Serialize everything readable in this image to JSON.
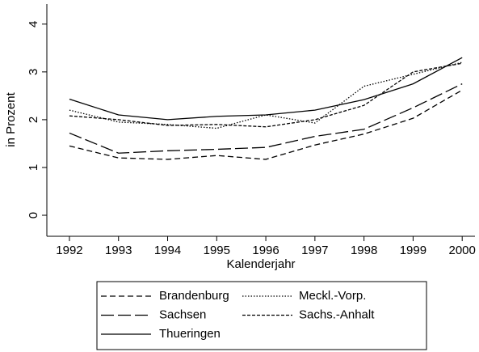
{
  "chart_data": {
    "type": "line",
    "x_label": "Kalenderjahr",
    "y_label": "in Prozent",
    "x": [
      1992,
      1993,
      1994,
      1995,
      1996,
      1997,
      1998,
      1999,
      2000
    ],
    "series": [
      {
        "name": "Brandenburg",
        "color": "#000000",
        "dash": "7,4",
        "values": [
          1.45,
          1.2,
          1.17,
          1.25,
          1.17,
          1.47,
          1.7,
          2.03,
          2.62
        ]
      },
      {
        "name": "Meckl.-Vorp.",
        "color": "#000000",
        "dash": "1.5,2",
        "values": [
          2.2,
          1.95,
          1.9,
          1.82,
          2.1,
          1.93,
          2.7,
          2.95,
          3.2
        ]
      },
      {
        "name": "Sachsen",
        "color": "#000000",
        "dash": "16,5",
        "values": [
          1.72,
          1.3,
          1.35,
          1.38,
          1.42,
          1.65,
          1.8,
          2.25,
          2.75
        ]
      },
      {
        "name": "Sachs.-Anhalt",
        "color": "#000000",
        "dash": "4,2",
        "values": [
          2.08,
          2.0,
          1.88,
          1.9,
          1.85,
          2.0,
          2.3,
          3.0,
          3.18
        ]
      },
      {
        "name": "Thueringen",
        "color": "#000000",
        "dash": "none",
        "values": [
          2.43,
          2.1,
          2.0,
          2.07,
          2.1,
          2.2,
          2.42,
          2.75,
          3.3
        ]
      }
    ],
    "xlim": [
      1991.54,
      2000.26
    ],
    "xticks": [
      1992,
      1993,
      1994,
      1995,
      1996,
      1997,
      1998,
      1999,
      2000
    ],
    "ylim": [
      -0.44,
      4.42
    ],
    "yticks": [
      0,
      1,
      2,
      3,
      4
    ]
  }
}
